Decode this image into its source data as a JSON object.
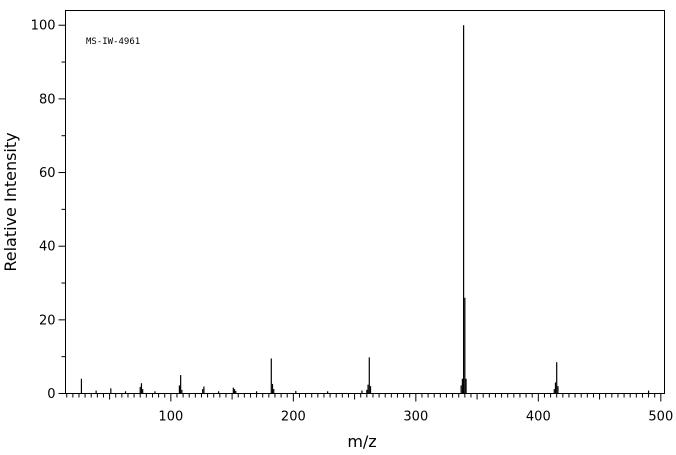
{
  "chart_data": {
    "type": "bar",
    "annotation": "MS-IW-4961",
    "xlabel": "m/z",
    "ylabel": "Relative Intensity",
    "xlim": [
      14,
      503
    ],
    "ylim": [
      0,
      104
    ],
    "x_ticks": [
      100,
      200,
      300,
      400,
      500
    ],
    "y_ticks": [
      0,
      20,
      40,
      60,
      80,
      100
    ],
    "grid": false,
    "peaks": [
      {
        "mz": 27,
        "intensity": 4.0
      },
      {
        "mz": 39,
        "intensity": 0.8
      },
      {
        "mz": 51,
        "intensity": 1.4
      },
      {
        "mz": 63,
        "intensity": 0.6
      },
      {
        "mz": 75,
        "intensity": 1.8
      },
      {
        "mz": 76,
        "intensity": 2.8
      },
      {
        "mz": 77,
        "intensity": 1.2
      },
      {
        "mz": 87,
        "intensity": 0.6
      },
      {
        "mz": 107,
        "intensity": 2.2
      },
      {
        "mz": 108,
        "intensity": 5.0
      },
      {
        "mz": 109,
        "intensity": 1.0
      },
      {
        "mz": 126,
        "intensity": 1.2
      },
      {
        "mz": 127,
        "intensity": 1.9
      },
      {
        "mz": 139,
        "intensity": 0.6
      },
      {
        "mz": 151,
        "intensity": 1.6
      },
      {
        "mz": 152,
        "intensity": 1.2
      },
      {
        "mz": 153,
        "intensity": 0.7
      },
      {
        "mz": 170,
        "intensity": 0.6
      },
      {
        "mz": 182,
        "intensity": 9.5
      },
      {
        "mz": 183,
        "intensity": 2.6
      },
      {
        "mz": 184,
        "intensity": 1.2
      },
      {
        "mz": 202,
        "intensity": 0.7
      },
      {
        "mz": 228,
        "intensity": 0.6
      },
      {
        "mz": 256,
        "intensity": 0.8
      },
      {
        "mz": 260,
        "intensity": 1.0
      },
      {
        "mz": 261,
        "intensity": 2.4
      },
      {
        "mz": 262,
        "intensity": 9.8
      },
      {
        "mz": 263,
        "intensity": 2.0
      },
      {
        "mz": 337,
        "intensity": 2.2
      },
      {
        "mz": 338,
        "intensity": 4.0
      },
      {
        "mz": 339,
        "intensity": 100
      },
      {
        "mz": 340,
        "intensity": 26.0
      },
      {
        "mz": 341,
        "intensity": 4.0
      },
      {
        "mz": 413,
        "intensity": 1.2
      },
      {
        "mz": 414,
        "intensity": 3.0
      },
      {
        "mz": 415,
        "intensity": 8.5
      },
      {
        "mz": 416,
        "intensity": 2.0
      },
      {
        "mz": 490,
        "intensity": 0.8
      }
    ]
  }
}
